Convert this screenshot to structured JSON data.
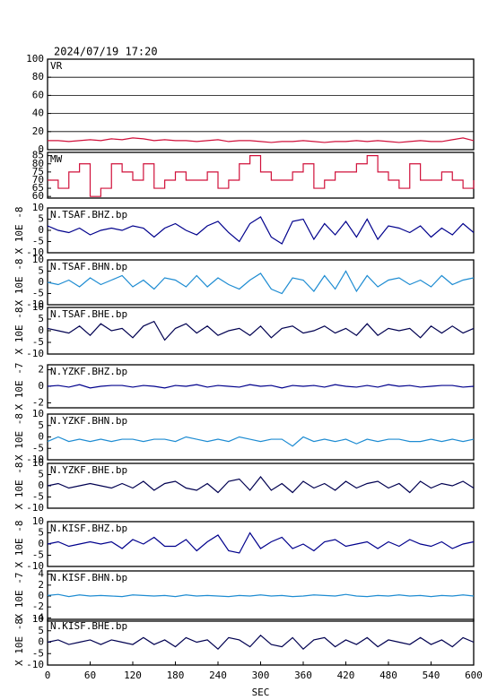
{
  "chart_data": [
    {
      "type": "line",
      "title": "2024/07/19 17:20",
      "xlim": [
        0,
        600
      ],
      "ylim": [
        0,
        100
      ],
      "yticks": [
        0,
        20,
        40,
        60,
        80,
        100
      ],
      "grid": true,
      "x": [
        0,
        15,
        30,
        45,
        60,
        75,
        90,
        105,
        120,
        135,
        150,
        165,
        180,
        195,
        210,
        225,
        240,
        255,
        270,
        285,
        300,
        315,
        330,
        345,
        360,
        375,
        390,
        405,
        420,
        435,
        450,
        465,
        480,
        495,
        510,
        525,
        540,
        555,
        570,
        585,
        600
      ],
      "series": [
        {
          "name": "VR",
          "color": "#d0103a",
          "values": [
            10,
            10,
            9,
            10,
            11,
            10,
            12,
            11,
            13,
            12,
            10,
            11,
            10,
            10,
            9,
            10,
            11,
            9,
            10,
            10,
            9,
            8,
            9,
            9,
            10,
            9,
            8,
            9,
            9,
            10,
            9,
            10,
            9,
            8,
            9,
            10,
            9,
            9,
            11,
            13,
            10
          ]
        }
      ]
    },
    {
      "type": "step",
      "xlim": [
        0,
        600
      ],
      "ylim": [
        59,
        87
      ],
      "yticks": [
        60,
        65,
        70,
        75,
        80,
        85
      ],
      "grid": false,
      "x": [
        0,
        15,
        30,
        45,
        60,
        75,
        90,
        105,
        120,
        135,
        150,
        165,
        180,
        195,
        210,
        225,
        240,
        255,
        270,
        285,
        300,
        315,
        330,
        345,
        360,
        375,
        390,
        405,
        420,
        435,
        450,
        465,
        480,
        495,
        510,
        525,
        540,
        555,
        570,
        585,
        600
      ],
      "series": [
        {
          "name": "MW",
          "color": "#d0103a",
          "values": [
            70,
            65,
            75,
            80,
            60,
            65,
            80,
            75,
            70,
            80,
            65,
            70,
            75,
            70,
            70,
            75,
            65,
            70,
            80,
            85,
            75,
            70,
            70,
            75,
            80,
            65,
            70,
            75,
            75,
            80,
            85,
            75,
            70,
            65,
            80,
            70,
            70,
            75,
            70,
            65,
            70
          ]
        }
      ]
    },
    {
      "type": "line",
      "ylabel": "X 10E -8",
      "xlim": [
        0,
        600
      ],
      "ylim": [
        -10,
        10
      ],
      "yticks": [
        -10,
        -5,
        0,
        5,
        10
      ],
      "grid": false,
      "x": [
        0,
        15,
        30,
        45,
        60,
        75,
        90,
        105,
        120,
        135,
        150,
        165,
        180,
        195,
        210,
        225,
        240,
        255,
        270,
        285,
        300,
        315,
        330,
        345,
        360,
        375,
        390,
        405,
        420,
        435,
        450,
        465,
        480,
        495,
        510,
        525,
        540,
        555,
        570,
        585,
        600
      ],
      "series": [
        {
          "name": "N.TSAF.BHZ.bp",
          "color": "#00008c",
          "values": [
            2,
            0,
            -1,
            1,
            -2,
            0,
            1,
            0,
            2,
            1,
            -3,
            1,
            3,
            0,
            -2,
            2,
            4,
            -1,
            -5,
            3,
            6,
            -3,
            -6,
            4,
            5,
            -4,
            3,
            -2,
            4,
            -3,
            5,
            -4,
            2,
            1,
            -1,
            2,
            -3,
            1,
            -2,
            3,
            -1
          ]
        }
      ]
    },
    {
      "type": "line",
      "ylabel": "X 10E -8",
      "xlim": [
        0,
        600
      ],
      "ylim": [
        -10,
        10
      ],
      "yticks": [
        -10,
        -5,
        0,
        5,
        10
      ],
      "grid": false,
      "x": [
        0,
        15,
        30,
        45,
        60,
        75,
        90,
        105,
        120,
        135,
        150,
        165,
        180,
        195,
        210,
        225,
        240,
        255,
        270,
        285,
        300,
        315,
        330,
        345,
        360,
        375,
        390,
        405,
        420,
        435,
        450,
        465,
        480,
        495,
        510,
        525,
        540,
        555,
        570,
        585,
        600
      ],
      "series": [
        {
          "name": "N.TSAF.BHN.bp",
          "color": "#1e8cd2",
          "values": [
            0,
            -1,
            1,
            -2,
            2,
            -1,
            1,
            3,
            -2,
            1,
            -3,
            2,
            1,
            -2,
            3,
            -2,
            2,
            -1,
            -3,
            1,
            4,
            -3,
            -5,
            2,
            1,
            -4,
            3,
            -3,
            5,
            -4,
            3,
            -2,
            1,
            2,
            -1,
            1,
            -2,
            3,
            -1,
            1,
            2
          ]
        }
      ]
    },
    {
      "type": "line",
      "ylabel": "X 10E -8",
      "xlim": [
        0,
        600
      ],
      "ylim": [
        -10,
        10
      ],
      "yticks": [
        -10,
        -5,
        0,
        5,
        10
      ],
      "grid": false,
      "x": [
        0,
        15,
        30,
        45,
        60,
        75,
        90,
        105,
        120,
        135,
        150,
        165,
        180,
        195,
        210,
        225,
        240,
        255,
        270,
        285,
        300,
        315,
        330,
        345,
        360,
        375,
        390,
        405,
        420,
        435,
        450,
        465,
        480,
        495,
        510,
        525,
        540,
        555,
        570,
        585,
        600
      ],
      "series": [
        {
          "name": "N.TSAF.BHE.bp",
          "color": "#000050",
          "values": [
            1,
            0,
            -1,
            2,
            -2,
            3,
            0,
            1,
            -3,
            2,
            4,
            -4,
            1,
            3,
            -1,
            2,
            -2,
            0,
            1,
            -2,
            2,
            -3,
            1,
            2,
            -1,
            0,
            2,
            -1,
            1,
            -2,
            3,
            -2,
            1,
            0,
            1,
            -3,
            2,
            -1,
            2,
            -1,
            1
          ]
        }
      ]
    },
    {
      "type": "line",
      "ylabel": "X 10E -7",
      "xlim": [
        0,
        600
      ],
      "ylim": [
        -2.6,
        2.6
      ],
      "yticks": [
        -2,
        0,
        2
      ],
      "grid": false,
      "x": [
        0,
        15,
        30,
        45,
        60,
        75,
        90,
        105,
        120,
        135,
        150,
        165,
        180,
        195,
        210,
        225,
        240,
        255,
        270,
        285,
        300,
        315,
        330,
        345,
        360,
        375,
        390,
        405,
        420,
        435,
        450,
        465,
        480,
        495,
        510,
        525,
        540,
        555,
        570,
        585,
        600
      ],
      "series": [
        {
          "name": "N.YZKF.BHZ.bp",
          "color": "#00008c",
          "values": [
            0,
            0.1,
            -0.1,
            0.2,
            -0.2,
            0,
            0.1,
            0.1,
            -0.1,
            0.1,
            0,
            -0.2,
            0.1,
            0,
            0.2,
            -0.1,
            0.1,
            0,
            -0.1,
            0.2,
            0,
            0.1,
            -0.2,
            0.1,
            0,
            0.1,
            -0.1,
            0.2,
            0,
            -0.1,
            0.1,
            -0.1,
            0.2,
            0,
            0.1,
            -0.1,
            0,
            0.1,
            0.1,
            -0.1,
            0
          ]
        }
      ]
    },
    {
      "type": "line",
      "ylabel": "X 10E -8",
      "xlim": [
        0,
        600
      ],
      "ylim": [
        -10,
        10
      ],
      "yticks": [
        -10,
        -5,
        0,
        5,
        10
      ],
      "grid": false,
      "x": [
        0,
        15,
        30,
        45,
        60,
        75,
        90,
        105,
        120,
        135,
        150,
        165,
        180,
        195,
        210,
        225,
        240,
        255,
        270,
        285,
        300,
        315,
        330,
        345,
        360,
        375,
        390,
        405,
        420,
        435,
        450,
        465,
        480,
        495,
        510,
        525,
        540,
        555,
        570,
        585,
        600
      ],
      "series": [
        {
          "name": "N.YZKF.BHN.bp",
          "color": "#1e8cd2",
          "values": [
            -2,
            0,
            -2,
            -1,
            -2,
            -1,
            -2,
            -1,
            -1,
            -2,
            -1,
            -1,
            -2,
            0,
            -1,
            -2,
            -1,
            -2,
            0,
            -1,
            -2,
            -1,
            -1,
            -4,
            0,
            -2,
            -1,
            -2,
            -1,
            -3,
            -1,
            -2,
            -1,
            -1,
            -2,
            -2,
            -1,
            -2,
            -1,
            -2,
            -1
          ]
        }
      ]
    },
    {
      "type": "line",
      "ylabel": "X 10E -8",
      "xlim": [
        0,
        600
      ],
      "ylim": [
        -10,
        10
      ],
      "yticks": [
        -10,
        -5,
        0,
        5,
        10
      ],
      "grid": false,
      "x": [
        0,
        15,
        30,
        45,
        60,
        75,
        90,
        105,
        120,
        135,
        150,
        165,
        180,
        195,
        210,
        225,
        240,
        255,
        270,
        285,
        300,
        315,
        330,
        345,
        360,
        375,
        390,
        405,
        420,
        435,
        450,
        465,
        480,
        495,
        510,
        525,
        540,
        555,
        570,
        585,
        600
      ],
      "series": [
        {
          "name": "N.YZKF.BHE.bp",
          "color": "#000050",
          "values": [
            0,
            1,
            -1,
            0,
            1,
            0,
            -1,
            1,
            -1,
            2,
            -2,
            1,
            2,
            -1,
            -2,
            1,
            -3,
            2,
            3,
            -2,
            4,
            -2,
            1,
            -3,
            2,
            -1,
            1,
            -2,
            2,
            -1,
            1,
            2,
            -1,
            1,
            -3,
            2,
            -1,
            1,
            0,
            2,
            -1
          ]
        }
      ]
    },
    {
      "type": "line",
      "ylabel": "X 10E -8",
      "xlim": [
        0,
        600
      ],
      "ylim": [
        -10,
        10
      ],
      "yticks": [
        -10,
        -5,
        0,
        5,
        10
      ],
      "grid": false,
      "x": [
        0,
        15,
        30,
        45,
        60,
        75,
        90,
        105,
        120,
        135,
        150,
        165,
        180,
        195,
        210,
        225,
        240,
        255,
        270,
        285,
        300,
        315,
        330,
        345,
        360,
        375,
        390,
        405,
        420,
        435,
        450,
        465,
        480,
        495,
        510,
        525,
        540,
        555,
        570,
        585,
        600
      ],
      "series": [
        {
          "name": "N.KISF.BHZ.bp",
          "color": "#00008c",
          "values": [
            0,
            1,
            -1,
            0,
            1,
            0,
            1,
            -2,
            2,
            0,
            3,
            -1,
            -1,
            2,
            -3,
            1,
            4,
            -3,
            -4,
            5,
            -2,
            1,
            3,
            -2,
            0,
            -3,
            1,
            2,
            -1,
            0,
            1,
            -2,
            1,
            -1,
            2,
            0,
            -1,
            1,
            -2,
            0,
            1
          ]
        }
      ]
    },
    {
      "type": "line",
      "ylabel": "X 10E -7",
      "xlim": [
        0,
        600
      ],
      "ylim": [
        -4.6,
        4.6
      ],
      "yticks": [
        -4,
        -2,
        0,
        2,
        4
      ],
      "grid": false,
      "x": [
        0,
        15,
        30,
        45,
        60,
        75,
        90,
        105,
        120,
        135,
        150,
        165,
        180,
        195,
        210,
        225,
        240,
        255,
        270,
        285,
        300,
        315,
        330,
        345,
        360,
        375,
        390,
        405,
        420,
        435,
        450,
        465,
        480,
        495,
        510,
        525,
        540,
        555,
        570,
        585,
        600
      ],
      "series": [
        {
          "name": "N.KISF.BHN.bp",
          "color": "#1e8cd2",
          "values": [
            0.1,
            0.3,
            -0.1,
            0.2,
            0,
            0.1,
            0,
            -0.1,
            0.2,
            0.1,
            0,
            0.1,
            -0.1,
            0.2,
            0,
            0.1,
            0,
            -0.1,
            0.1,
            0,
            0.2,
            0,
            0.1,
            -0.1,
            0,
            0.2,
            0.1,
            0,
            0.3,
            0,
            -0.1,
            0.1,
            0,
            0.2,
            0,
            0.1,
            -0.1,
            0.1,
            0,
            0.2,
            0
          ]
        }
      ]
    },
    {
      "type": "line",
      "ylabel": "X 10E -8",
      "xlabel": "SEC",
      "xlim": [
        0,
        600
      ],
      "xticks": [
        0,
        60,
        120,
        180,
        240,
        300,
        360,
        420,
        480,
        540,
        600
      ],
      "ylim": [
        -10,
        10
      ],
      "yticks": [
        -10,
        -5,
        0,
        5,
        10
      ],
      "grid": false,
      "x": [
        0,
        15,
        30,
        45,
        60,
        75,
        90,
        105,
        120,
        135,
        150,
        165,
        180,
        195,
        210,
        225,
        240,
        255,
        270,
        285,
        300,
        315,
        330,
        345,
        360,
        375,
        390,
        405,
        420,
        435,
        450,
        465,
        480,
        495,
        510,
        525,
        540,
        555,
        570,
        585,
        600
      ],
      "series": [
        {
          "name": "N.KISF.BHE.bp",
          "color": "#000050",
          "values": [
            0,
            1,
            -1,
            0,
            1,
            -1,
            1,
            0,
            -1,
            2,
            -1,
            1,
            -2,
            2,
            0,
            1,
            -3,
            2,
            1,
            -2,
            3,
            -1,
            -2,
            2,
            -3,
            1,
            2,
            -2,
            1,
            -1,
            2,
            -2,
            1,
            0,
            -1,
            2,
            -1,
            1,
            -2,
            2,
            0
          ]
        }
      ]
    }
  ]
}
